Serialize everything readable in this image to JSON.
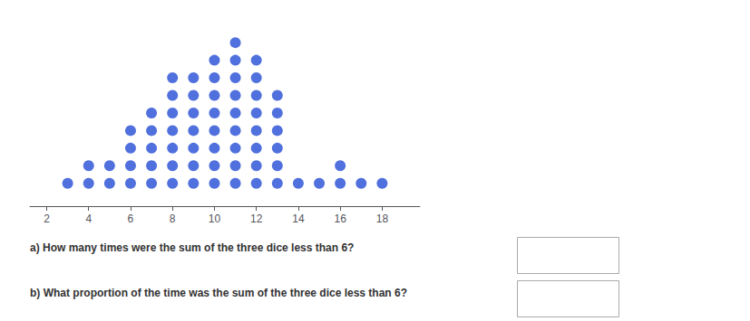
{
  "chart_data": {
    "type": "dot",
    "x": [
      3,
      4,
      5,
      6,
      7,
      8,
      9,
      10,
      11,
      12,
      13,
      14,
      15,
      16,
      17,
      18
    ],
    "values": [
      1,
      2,
      2,
      4,
      5,
      7,
      7,
      8,
      9,
      8,
      6,
      1,
      1,
      2,
      1,
      1
    ],
    "xlim": [
      1.2,
      19.8
    ],
    "ylim": [
      -0.8,
      10
    ],
    "xticks": [
      2,
      4,
      6,
      8,
      10,
      12,
      14,
      16,
      18
    ],
    "tick_labels": "x",
    "grid": false,
    "annotations": [
      "a) How many times were the sum of the three dice less than 6?",
      "b) What proportion of the time was the sum of the three dice less than 6?"
    ]
  }
}
